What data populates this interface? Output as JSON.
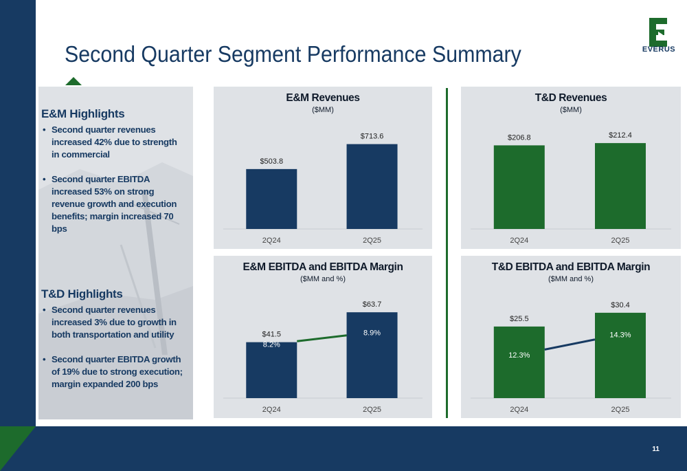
{
  "page": {
    "title": "Second Quarter Segment Performance Summary",
    "page_number": "11",
    "logo_text": "EVERUS",
    "colors": {
      "navy": "#173a62",
      "green": "#1d6b2c",
      "panel": "#dfe2e6"
    }
  },
  "highlights": {
    "em": {
      "heading": "E&M Highlights",
      "items": [
        "Second quarter revenues increased 42% due to strength in commercial",
        "Second quarter EBITDA increased 53% on strong revenue growth and execution benefits; margin increased 70 bps"
      ]
    },
    "td": {
      "heading": "T&D Highlights",
      "items": [
        "Second quarter revenues increased 3% due to growth in both transportation and utility",
        "Second quarter EBITDA growth of 19% due to strong execution; margin expanded 200 bps"
      ]
    }
  },
  "chart_data": [
    {
      "type": "bar",
      "title": "E&M Revenues",
      "subtitle": "($MM)",
      "categories": [
        "2Q24",
        "2Q25"
      ],
      "values": [
        503.8,
        713.6
      ],
      "labels": [
        "$503.8",
        "$713.6"
      ],
      "color": "#173a62",
      "ylim": [
        0,
        850
      ]
    },
    {
      "type": "bar",
      "title": "T&D Revenues",
      "subtitle": "($MM)",
      "categories": [
        "2Q24",
        "2Q25"
      ],
      "values": [
        206.8,
        212.4
      ],
      "labels": [
        "$206.8",
        "$212.4"
      ],
      "color": "#1d6b2c",
      "ylim": [
        0,
        250
      ]
    },
    {
      "type": "bar",
      "title": "E&M EBITDA and EBITDA Margin",
      "subtitle": "($MM and %)",
      "categories": [
        "2Q24",
        "2Q25"
      ],
      "values": [
        41.5,
        63.7
      ],
      "labels": [
        "$41.5",
        "$63.7"
      ],
      "color": "#173a62",
      "ylim": [
        0,
        75
      ],
      "line": {
        "values": [
          8.2,
          8.9
        ],
        "labels": [
          "8.2%",
          "8.9%"
        ],
        "color": "#1d6b2c",
        "ylim": [
          5,
          11
        ]
      }
    },
    {
      "type": "bar",
      "title": "T&D EBITDA and EBITDA Margin",
      "subtitle": "($MM and %)",
      "categories": [
        "2Q24",
        "2Q25"
      ],
      "values": [
        25.5,
        30.4
      ],
      "labels": [
        "$25.5",
        "$30.4"
      ],
      "color": "#1d6b2c",
      "ylim": [
        0,
        36
      ],
      "line": {
        "values": [
          12.3,
          14.3
        ],
        "labels": [
          "12.3%",
          "14.3%"
        ],
        "color": "#173a62",
        "ylim": [
          8,
          18
        ]
      }
    }
  ]
}
